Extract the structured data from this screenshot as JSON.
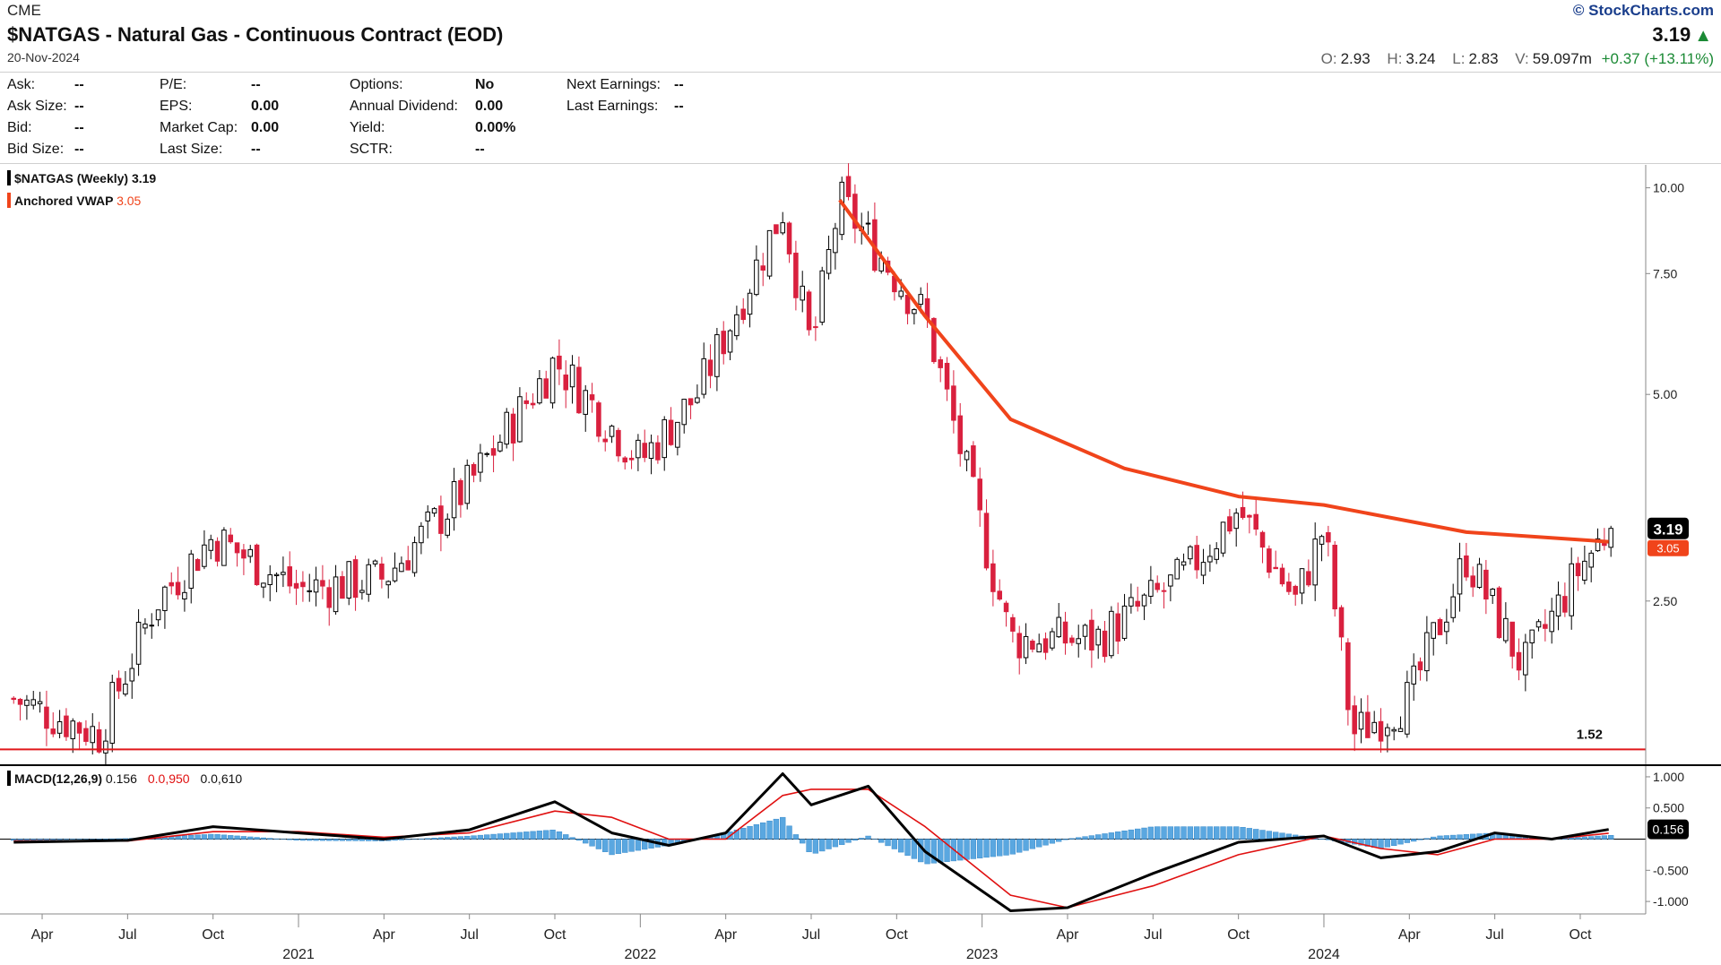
{
  "header": {
    "exchange": "CME",
    "title": "$NATGAS - Natural Gas - Continuous Contract (EOD)",
    "date": "20-Nov-2024",
    "copyright": "© StockCharts.com",
    "last_price": "3.19",
    "up_arrow": "▲",
    "ohlc": {
      "o_label": "O:",
      "o": "2.93",
      "h_label": "H:",
      "h": "3.24",
      "l_label": "L:",
      "l": "2.83",
      "v_label": "V:",
      "v": "59.097m",
      "change": "+0.37 (+13.11%)"
    }
  },
  "fundamentals": [
    {
      "label": "Ask:",
      "value": "--"
    },
    {
      "label": "Ask Size:",
      "value": "--"
    },
    {
      "label": "Bid:",
      "value": "--"
    },
    {
      "label": "Bid Size:",
      "value": "--"
    },
    {
      "label": "P/E:",
      "value": "--"
    },
    {
      "label": "EPS:",
      "value": "0.00"
    },
    {
      "label": "Market Cap:",
      "value": "0.00"
    },
    {
      "label": "Last Size:",
      "value": "--"
    },
    {
      "label": "Options:",
      "value": "No"
    },
    {
      "label": "Annual Dividend:",
      "value": "0.00"
    },
    {
      "label": "Yield:",
      "value": "0.00%"
    },
    {
      "label": "SCTR:",
      "value": "--"
    },
    {
      "label": "Next Earnings:",
      "value": "--"
    },
    {
      "label": "Last Earnings:",
      "value": "--"
    }
  ],
  "legend": {
    "price_label": "$NATGAS (Weekly) 3.19",
    "vwap_label": "Anchored VWAP",
    "vwap_value": "3.05",
    "macd_label": "MACD(12,26,9)",
    "macd_value": "0.156",
    "macd_signal": "0.0,950",
    "macd_hist": "0.0,610"
  },
  "colors": {
    "up_candle": "#ffffff",
    "down_candle": "#d9203e",
    "vwap": "#f0441b",
    "support": "#e0181b",
    "macd_line": "#000000",
    "signal_line": "#e01010",
    "histogram": "#5aa7e0",
    "price_badge": "#000000"
  },
  "chart_data": [
    {
      "type": "candlestick",
      "title": "$NATGAS (Weekly) 3.19",
      "y_scale": "log",
      "ylim": [
        1.45,
        10.8
      ],
      "y_ticks": [
        "10.00",
        "7.50",
        "5.00",
        "2.50"
      ],
      "x_ticks": [
        "Apr",
        "Jul",
        "Oct",
        "2021",
        "Apr",
        "Jul",
        "Oct",
        "2022",
        "Apr",
        "Jul",
        "Oct",
        "2023",
        "Apr",
        "Jul",
        "Oct",
        "2024",
        "Apr",
        "Jul",
        "Oct"
      ],
      "x_range": [
        "2020-03",
        "2024-11"
      ],
      "current_price": 3.19,
      "vwap_current": 3.05,
      "support_level": 1.52,
      "support_label": "1.52",
      "close_path": [
        {
          "x": "2020-03",
          "y": 1.8
        },
        {
          "x": "2020-06",
          "y": 1.6
        },
        {
          "x": "2020-08",
          "y": 2.5
        },
        {
          "x": "2020-10",
          "y": 3.1
        },
        {
          "x": "2021-01",
          "y": 2.6
        },
        {
          "x": "2021-04",
          "y": 2.7
        },
        {
          "x": "2021-07",
          "y": 3.7
        },
        {
          "x": "2021-10",
          "y": 5.6
        },
        {
          "x": "2022-01",
          "y": 4.0
        },
        {
          "x": "2022-03",
          "y": 5.0
        },
        {
          "x": "2022-06",
          "y": 9.3
        },
        {
          "x": "2022-07",
          "y": 5.8
        },
        {
          "x": "2022-08",
          "y": 9.6
        },
        {
          "x": "2022-11",
          "y": 6.5
        },
        {
          "x": "2023-02",
          "y": 2.2
        },
        {
          "x": "2023-05",
          "y": 2.2
        },
        {
          "x": "2023-08",
          "y": 2.7
        },
        {
          "x": "2023-10",
          "y": 3.4
        },
        {
          "x": "2023-12",
          "y": 2.5
        },
        {
          "x": "2024-01",
          "y": 3.2
        },
        {
          "x": "2024-02",
          "y": 1.6
        },
        {
          "x": "2024-04",
          "y": 1.8
        },
        {
          "x": "2024-06",
          "y": 2.9
        },
        {
          "x": "2024-08",
          "y": 2.0
        },
        {
          "x": "2024-10",
          "y": 2.8
        },
        {
          "x": "2024-11",
          "y": 3.19
        }
      ],
      "vwap_path": [
        {
          "x": "2022-08",
          "y": 9.6
        },
        {
          "x": "2022-11",
          "y": 6.5
        },
        {
          "x": "2023-02",
          "y": 4.6
        },
        {
          "x": "2023-06",
          "y": 3.9
        },
        {
          "x": "2023-10",
          "y": 3.55
        },
        {
          "x": "2024-01",
          "y": 3.45
        },
        {
          "x": "2024-06",
          "y": 3.15
        },
        {
          "x": "2024-11",
          "y": 3.05
        }
      ]
    },
    {
      "type": "line",
      "title": "MACD(12,26,9)",
      "ylim": [
        -1.2,
        1.1
      ],
      "y_ticks": [
        "1.000",
        "0.500",
        "-0.500",
        "-1.000"
      ],
      "current_value": 0.156,
      "series": [
        {
          "name": "MACD",
          "values": [
            {
              "x": "2020-03",
              "y": -0.05
            },
            {
              "x": "2020-07",
              "y": -0.02
            },
            {
              "x": "2020-10",
              "y": 0.2
            },
            {
              "x": "2021-01",
              "y": 0.1
            },
            {
              "x": "2021-04",
              "y": 0.0
            },
            {
              "x": "2021-07",
              "y": 0.15
            },
            {
              "x": "2021-10",
              "y": 0.6
            },
            {
              "x": "2021-12",
              "y": 0.1
            },
            {
              "x": "2022-02",
              "y": -0.1
            },
            {
              "x": "2022-04",
              "y": 0.1
            },
            {
              "x": "2022-06",
              "y": 1.05
            },
            {
              "x": "2022-07",
              "y": 0.55
            },
            {
              "x": "2022-09",
              "y": 0.85
            },
            {
              "x": "2022-11",
              "y": -0.2
            },
            {
              "x": "2023-02",
              "y": -1.15
            },
            {
              "x": "2023-04",
              "y": -1.1
            },
            {
              "x": "2023-07",
              "y": -0.55
            },
            {
              "x": "2023-10",
              "y": -0.05
            },
            {
              "x": "2024-01",
              "y": 0.05
            },
            {
              "x": "2024-03",
              "y": -0.3
            },
            {
              "x": "2024-05",
              "y": -0.2
            },
            {
              "x": "2024-07",
              "y": 0.1
            },
            {
              "x": "2024-09",
              "y": 0.0
            },
            {
              "x": "2024-11",
              "y": 0.156
            }
          ]
        },
        {
          "name": "Signal",
          "values": [
            {
              "x": "2020-03",
              "y": -0.03
            },
            {
              "x": "2020-07",
              "y": -0.03
            },
            {
              "x": "2020-10",
              "y": 0.12
            },
            {
              "x": "2021-01",
              "y": 0.12
            },
            {
              "x": "2021-04",
              "y": 0.03
            },
            {
              "x": "2021-07",
              "y": 0.1
            },
            {
              "x": "2021-10",
              "y": 0.45
            },
            {
              "x": "2021-12",
              "y": 0.35
            },
            {
              "x": "2022-02",
              "y": 0.0
            },
            {
              "x": "2022-04",
              "y": 0.0
            },
            {
              "x": "2022-06",
              "y": 0.7
            },
            {
              "x": "2022-07",
              "y": 0.8
            },
            {
              "x": "2022-09",
              "y": 0.8
            },
            {
              "x": "2022-11",
              "y": 0.2
            },
            {
              "x": "2023-02",
              "y": -0.9
            },
            {
              "x": "2023-04",
              "y": -1.1
            },
            {
              "x": "2023-07",
              "y": -0.75
            },
            {
              "x": "2023-10",
              "y": -0.25
            },
            {
              "x": "2024-01",
              "y": 0.05
            },
            {
              "x": "2024-03",
              "y": -0.15
            },
            {
              "x": "2024-05",
              "y": -0.25
            },
            {
              "x": "2024-07",
              "y": 0.0
            },
            {
              "x": "2024-09",
              "y": 0.0
            },
            {
              "x": "2024-11",
              "y": 0.095
            }
          ]
        }
      ]
    }
  ]
}
